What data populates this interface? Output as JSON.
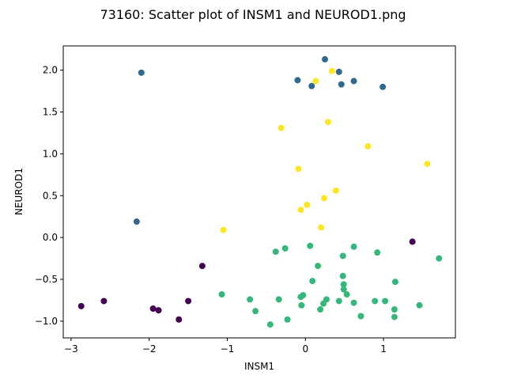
{
  "chart_data": {
    "type": "scatter",
    "title": "73160: Scatter plot of INSM1 and NEUROD1.png",
    "xlabel": "INSM1",
    "ylabel": "NEUROD1",
    "xlim": [
      -3.1,
      1.92
    ],
    "ylim": [
      -1.2,
      2.29
    ],
    "xticks": [
      -3,
      -2,
      -1,
      0,
      1
    ],
    "yticks": [
      -1.0,
      -0.5,
      0.0,
      0.5,
      1.0,
      1.5,
      2.0
    ],
    "xtick_labels": [
      "−3",
      "−2",
      "−1",
      "0",
      "1"
    ],
    "ytick_labels": [
      "−1.0",
      "−0.5",
      "0.0",
      "0.5",
      "1.0",
      "1.5",
      "2.0"
    ],
    "grid": false,
    "colors": [
      "#440154",
      "#31688e",
      "#35b779",
      "#fde725"
    ],
    "points": [
      {
        "x": -2.87,
        "y": -0.82,
        "c": 0
      },
      {
        "x": -2.58,
        "y": -0.76,
        "c": 0
      },
      {
        "x": -1.95,
        "y": -0.85,
        "c": 0
      },
      {
        "x": -1.88,
        "y": -0.87,
        "c": 0
      },
      {
        "x": -1.62,
        "y": -0.98,
        "c": 0
      },
      {
        "x": -1.5,
        "y": -0.76,
        "c": 0
      },
      {
        "x": -1.32,
        "y": -0.34,
        "c": 0
      },
      {
        "x": 1.37,
        "y": -0.05,
        "c": 0
      },
      {
        "x": -2.1,
        "y": 1.97,
        "c": 1
      },
      {
        "x": -2.16,
        "y": 0.19,
        "c": 1
      },
      {
        "x": -0.1,
        "y": 1.88,
        "c": 1
      },
      {
        "x": 0.08,
        "y": 1.81,
        "c": 1
      },
      {
        "x": 0.25,
        "y": 2.13,
        "c": 1
      },
      {
        "x": 0.43,
        "y": 1.98,
        "c": 1
      },
      {
        "x": 0.46,
        "y": 1.83,
        "c": 1
      },
      {
        "x": 0.62,
        "y": 1.87,
        "c": 1
      },
      {
        "x": 0.99,
        "y": 1.8,
        "c": 1
      },
      {
        "x": -1.07,
        "y": -0.68,
        "c": 2
      },
      {
        "x": -0.71,
        "y": -0.74,
        "c": 2
      },
      {
        "x": -0.64,
        "y": -0.88,
        "c": 2
      },
      {
        "x": -0.45,
        "y": -1.04,
        "c": 2
      },
      {
        "x": -0.38,
        "y": -0.17,
        "c": 2
      },
      {
        "x": -0.34,
        "y": -0.74,
        "c": 2
      },
      {
        "x": -0.26,
        "y": -0.13,
        "c": 2
      },
      {
        "x": -0.23,
        "y": -0.98,
        "c": 2
      },
      {
        "x": -0.06,
        "y": -0.71,
        "c": 2
      },
      {
        "x": -0.05,
        "y": -0.81,
        "c": 2
      },
      {
        "x": -0.03,
        "y": -0.69,
        "c": 2
      },
      {
        "x": 0.06,
        "y": -0.1,
        "c": 2
      },
      {
        "x": 0.09,
        "y": -0.52,
        "c": 2
      },
      {
        "x": 0.16,
        "y": -0.34,
        "c": 2
      },
      {
        "x": 0.19,
        "y": -0.86,
        "c": 2
      },
      {
        "x": 0.23,
        "y": -0.79,
        "c": 2
      },
      {
        "x": 0.27,
        "y": -0.74,
        "c": 2
      },
      {
        "x": 0.43,
        "y": -0.76,
        "c": 2
      },
      {
        "x": 0.48,
        "y": -0.22,
        "c": 2
      },
      {
        "x": 0.48,
        "y": -0.46,
        "c": 2
      },
      {
        "x": 0.49,
        "y": -0.56,
        "c": 2
      },
      {
        "x": 0.49,
        "y": -0.62,
        "c": 2
      },
      {
        "x": 0.53,
        "y": -0.68,
        "c": 2
      },
      {
        "x": 0.62,
        "y": -0.11,
        "c": 2
      },
      {
        "x": 0.62,
        "y": -0.78,
        "c": 2
      },
      {
        "x": 0.71,
        "y": -0.94,
        "c": 2
      },
      {
        "x": 0.89,
        "y": -0.76,
        "c": 2
      },
      {
        "x": 0.92,
        "y": -0.18,
        "c": 2
      },
      {
        "x": 1.02,
        "y": -0.76,
        "c": 2
      },
      {
        "x": 1.14,
        "y": -0.86,
        "c": 2
      },
      {
        "x": 1.14,
        "y": -0.95,
        "c": 2
      },
      {
        "x": 1.15,
        "y": -0.53,
        "c": 2
      },
      {
        "x": 1.46,
        "y": -0.81,
        "c": 2
      },
      {
        "x": 1.71,
        "y": -0.25,
        "c": 2
      },
      {
        "x": -1.05,
        "y": 0.09,
        "c": 3
      },
      {
        "x": -0.31,
        "y": 1.31,
        "c": 3
      },
      {
        "x": -0.09,
        "y": 0.82,
        "c": 3
      },
      {
        "x": -0.06,
        "y": 0.33,
        "c": 3
      },
      {
        "x": 0.02,
        "y": 0.39,
        "c": 3
      },
      {
        "x": 0.13,
        "y": 1.87,
        "c": 3
      },
      {
        "x": 0.2,
        "y": 0.12,
        "c": 3
      },
      {
        "x": 0.24,
        "y": 0.47,
        "c": 3
      },
      {
        "x": 0.29,
        "y": 1.38,
        "c": 3
      },
      {
        "x": 0.34,
        "y": 1.99,
        "c": 3
      },
      {
        "x": 0.39,
        "y": 0.56,
        "c": 3
      },
      {
        "x": 0.8,
        "y": 1.09,
        "c": 3
      },
      {
        "x": 1.56,
        "y": 0.88,
        "c": 3
      }
    ]
  }
}
